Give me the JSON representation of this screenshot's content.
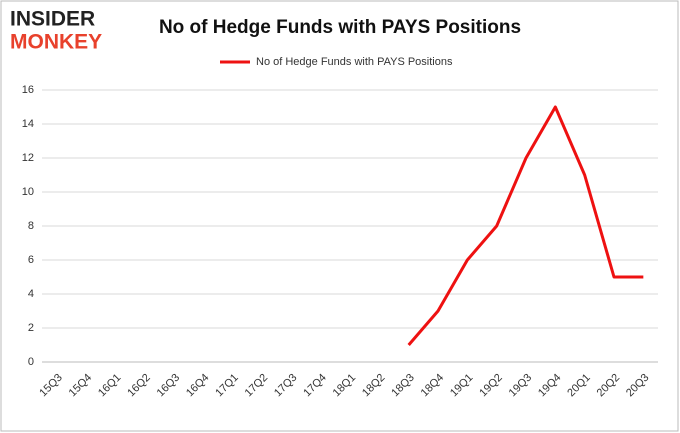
{
  "logo": [
    "INSIDER",
    "MONKEY"
  ],
  "chart_data": {
    "type": "line",
    "title": "No of Hedge Funds with PAYS Positions",
    "categories": [
      "15Q3",
      "15Q4",
      "16Q1",
      "16Q2",
      "16Q3",
      "16Q4",
      "17Q1",
      "17Q2",
      "17Q3",
      "17Q4",
      "18Q1",
      "18Q2",
      "18Q3",
      "18Q4",
      "19Q1",
      "19Q2",
      "19Q3",
      "19Q4",
      "20Q1",
      "20Q2",
      "20Q3"
    ],
    "series": [
      {
        "name": "No of Hedge Funds with PAYS Positions",
        "color": "#ee1111",
        "values": [
          null,
          null,
          null,
          null,
          null,
          null,
          null,
          null,
          null,
          null,
          null,
          null,
          1,
          3,
          6,
          8,
          12,
          15,
          11,
          5,
          5
        ]
      }
    ],
    "ylim": [
      0,
      16
    ],
    "yticks": [
      0,
      2,
      4,
      6,
      8,
      10,
      12,
      14,
      16
    ],
    "grid": true,
    "legend": "top"
  }
}
